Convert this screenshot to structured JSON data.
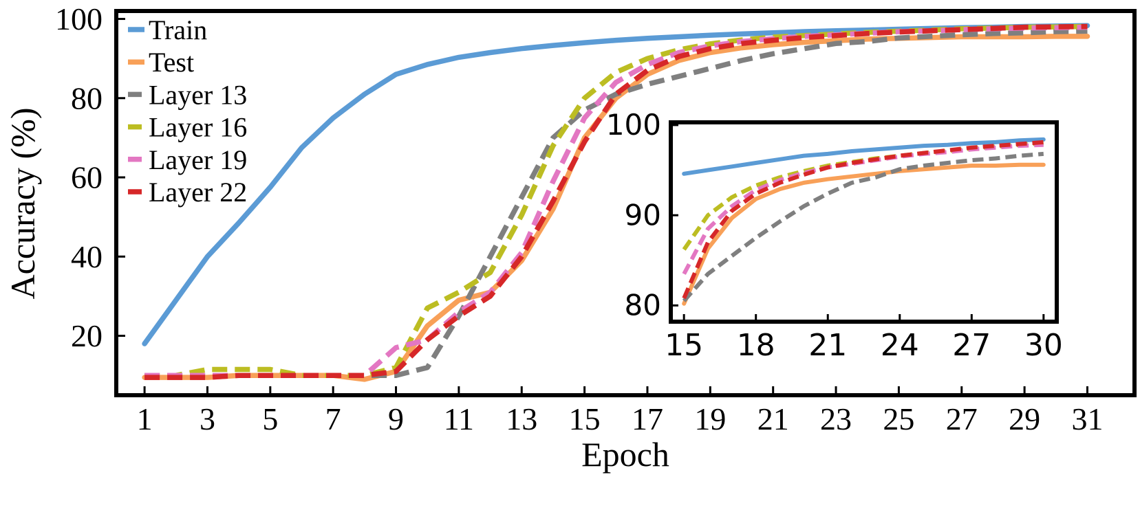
{
  "chart_data": [
    {
      "type": "line",
      "xlabel": "Epoch",
      "ylabel": "Accuracy (%)",
      "xlim": [
        0.1,
        32.5
      ],
      "ylim": [
        5,
        102
      ],
      "xticks": [
        1,
        3,
        5,
        7,
        9,
        11,
        13,
        15,
        17,
        19,
        21,
        23,
        25,
        27,
        29,
        31
      ],
      "yticks": [
        20,
        40,
        60,
        80,
        100
      ],
      "grid": false,
      "legend": "top-left",
      "x": [
        1,
        2,
        3,
        4,
        5,
        6,
        7,
        8,
        9,
        10,
        11,
        12,
        13,
        14,
        15,
        16,
        17,
        18,
        19,
        20,
        21,
        22,
        23,
        24,
        25,
        26,
        27,
        28,
        29,
        30,
        31
      ],
      "series": [
        {
          "name": "Train",
          "color": "#5b9bd5",
          "style": "solid",
          "values": [
            18,
            29,
            40,
            48.5,
            57.5,
            67.5,
            75,
            81,
            86,
            88.5,
            90.3,
            91.5,
            92.5,
            93.3,
            94,
            94.6,
            95.1,
            95.5,
            95.9,
            96.2,
            96.5,
            96.8,
            97,
            97.2,
            97.4,
            97.6,
            97.8,
            97.9,
            98.1,
            98.2,
            98.3
          ]
        },
        {
          "name": "Test",
          "color": "#f8a058",
          "style": "solid",
          "values": [
            9.5,
            9.5,
            9.5,
            10,
            10,
            10,
            10,
            9,
            11,
            22.5,
            29,
            31,
            39,
            52,
            70,
            80,
            86,
            89.5,
            91.5,
            92.7,
            93.5,
            94.1,
            94.5,
            94.9,
            95.1,
            95.3,
            95.5,
            95.5,
            95.5,
            95.6,
            95.6
          ]
        },
        {
          "name": "Layer 13",
          "color": "#7f7f7f",
          "style": "dashed",
          "values": [
            10,
            10,
            10,
            10,
            10,
            10,
            10,
            10,
            10,
            12,
            25,
            40,
            55,
            70,
            77,
            81,
            83.5,
            85.5,
            87.5,
            89.5,
            91.2,
            92.5,
            93.8,
            94.3,
            95.2,
            95.6,
            96,
            96.3,
            96.5,
            96.8,
            96.9
          ]
        },
        {
          "name": "Layer 16",
          "color": "#bcbd22",
          "style": "dashed",
          "values": [
            10,
            10,
            11.5,
            11.5,
            11.5,
            10,
            10,
            10,
            12,
            27,
            31,
            36,
            50.5,
            68,
            80,
            86.5,
            90,
            92.2,
            93.7,
            94.7,
            95.4,
            95.8,
            96.2,
            96.6,
            96.9,
            97.2,
            97.5,
            97.7,
            97.9,
            98,
            98.1
          ]
        },
        {
          "name": "Layer 19",
          "color": "#e377c2",
          "style": "dashed",
          "values": [
            10,
            10,
            10,
            10,
            10,
            10,
            10,
            10,
            17,
            19,
            26,
            31,
            41,
            59,
            75,
            84,
            88.5,
            91.5,
            93.2,
            94.3,
            95,
            95.6,
            96,
            96.4,
            96.8,
            97,
            97.3,
            97.5,
            97.7,
            97.8,
            97.9
          ]
        },
        {
          "name": "Layer 22",
          "color": "#d62728",
          "style": "dashed",
          "values": [
            9.5,
            9.5,
            9.5,
            10,
            10,
            10,
            10,
            10,
            11,
            19,
            25,
            30,
            40,
            54,
            69,
            81,
            87,
            90.5,
            92.5,
            93.8,
            94.6,
            95.3,
            95.8,
            96.3,
            96.7,
            97,
            97.3,
            97.6,
            97.9,
            98,
            98.1
          ]
        }
      ]
    },
    {
      "type": "line",
      "title": "",
      "xlabel": "",
      "ylabel": "",
      "xlim": [
        14.45,
        30.55
      ],
      "ylim": [
        78.2,
        100.3
      ],
      "xticks": [
        15,
        18,
        21,
        24,
        27,
        30
      ],
      "yticks": [
        80,
        90,
        100
      ],
      "grid": false,
      "x": [
        15,
        16,
        17,
        18,
        19,
        20,
        21,
        22,
        23,
        24,
        25,
        26,
        27,
        28,
        29,
        30
      ],
      "series": [
        {
          "name": "Train",
          "color": "#5b9bd5",
          "style": "solid",
          "values": [
            94.6,
            95,
            95.4,
            95.8,
            96.2,
            96.6,
            96.8,
            97.1,
            97.3,
            97.5,
            97.7,
            97.8,
            98,
            98.1,
            98.3,
            98.4
          ]
        },
        {
          "name": "Test",
          "color": "#f8a058",
          "style": "solid",
          "values": [
            80.2,
            86.3,
            89.7,
            91.8,
            92.9,
            93.6,
            94,
            94.3,
            94.6,
            94.9,
            95.1,
            95.3,
            95.5,
            95.5,
            95.6,
            95.6
          ]
        },
        {
          "name": "Layer 13",
          "color": "#7f7f7f",
          "style": "dashed",
          "values": [
            80.5,
            83.5,
            85.5,
            87.5,
            89.3,
            91,
            92.4,
            93.6,
            94.2,
            95.1,
            95.5,
            95.8,
            96.1,
            96.3,
            96.6,
            96.8
          ]
        },
        {
          "name": "Layer 16",
          "color": "#bcbd22",
          "style": "dashed",
          "values": [
            86.2,
            90,
            92,
            93.3,
            94.2,
            94.9,
            95.5,
            95.9,
            96.3,
            96.6,
            96.9,
            97.1,
            97.4,
            97.6,
            97.8,
            98
          ]
        },
        {
          "name": "Layer 19",
          "color": "#e377c2",
          "style": "dashed",
          "values": [
            83.5,
            88.5,
            91,
            92.8,
            93.9,
            94.7,
            95.3,
            95.7,
            96.1,
            96.5,
            96.8,
            97,
            97.3,
            97.5,
            97.7,
            97.8
          ]
        },
        {
          "name": "Layer 22",
          "color": "#d62728",
          "style": "dashed",
          "values": [
            80.8,
            87,
            90.5,
            92.4,
            93.6,
            94.5,
            95.3,
            95.8,
            96.2,
            96.6,
            96.9,
            97.2,
            97.5,
            97.7,
            97.9,
            98.1
          ]
        }
      ]
    }
  ]
}
